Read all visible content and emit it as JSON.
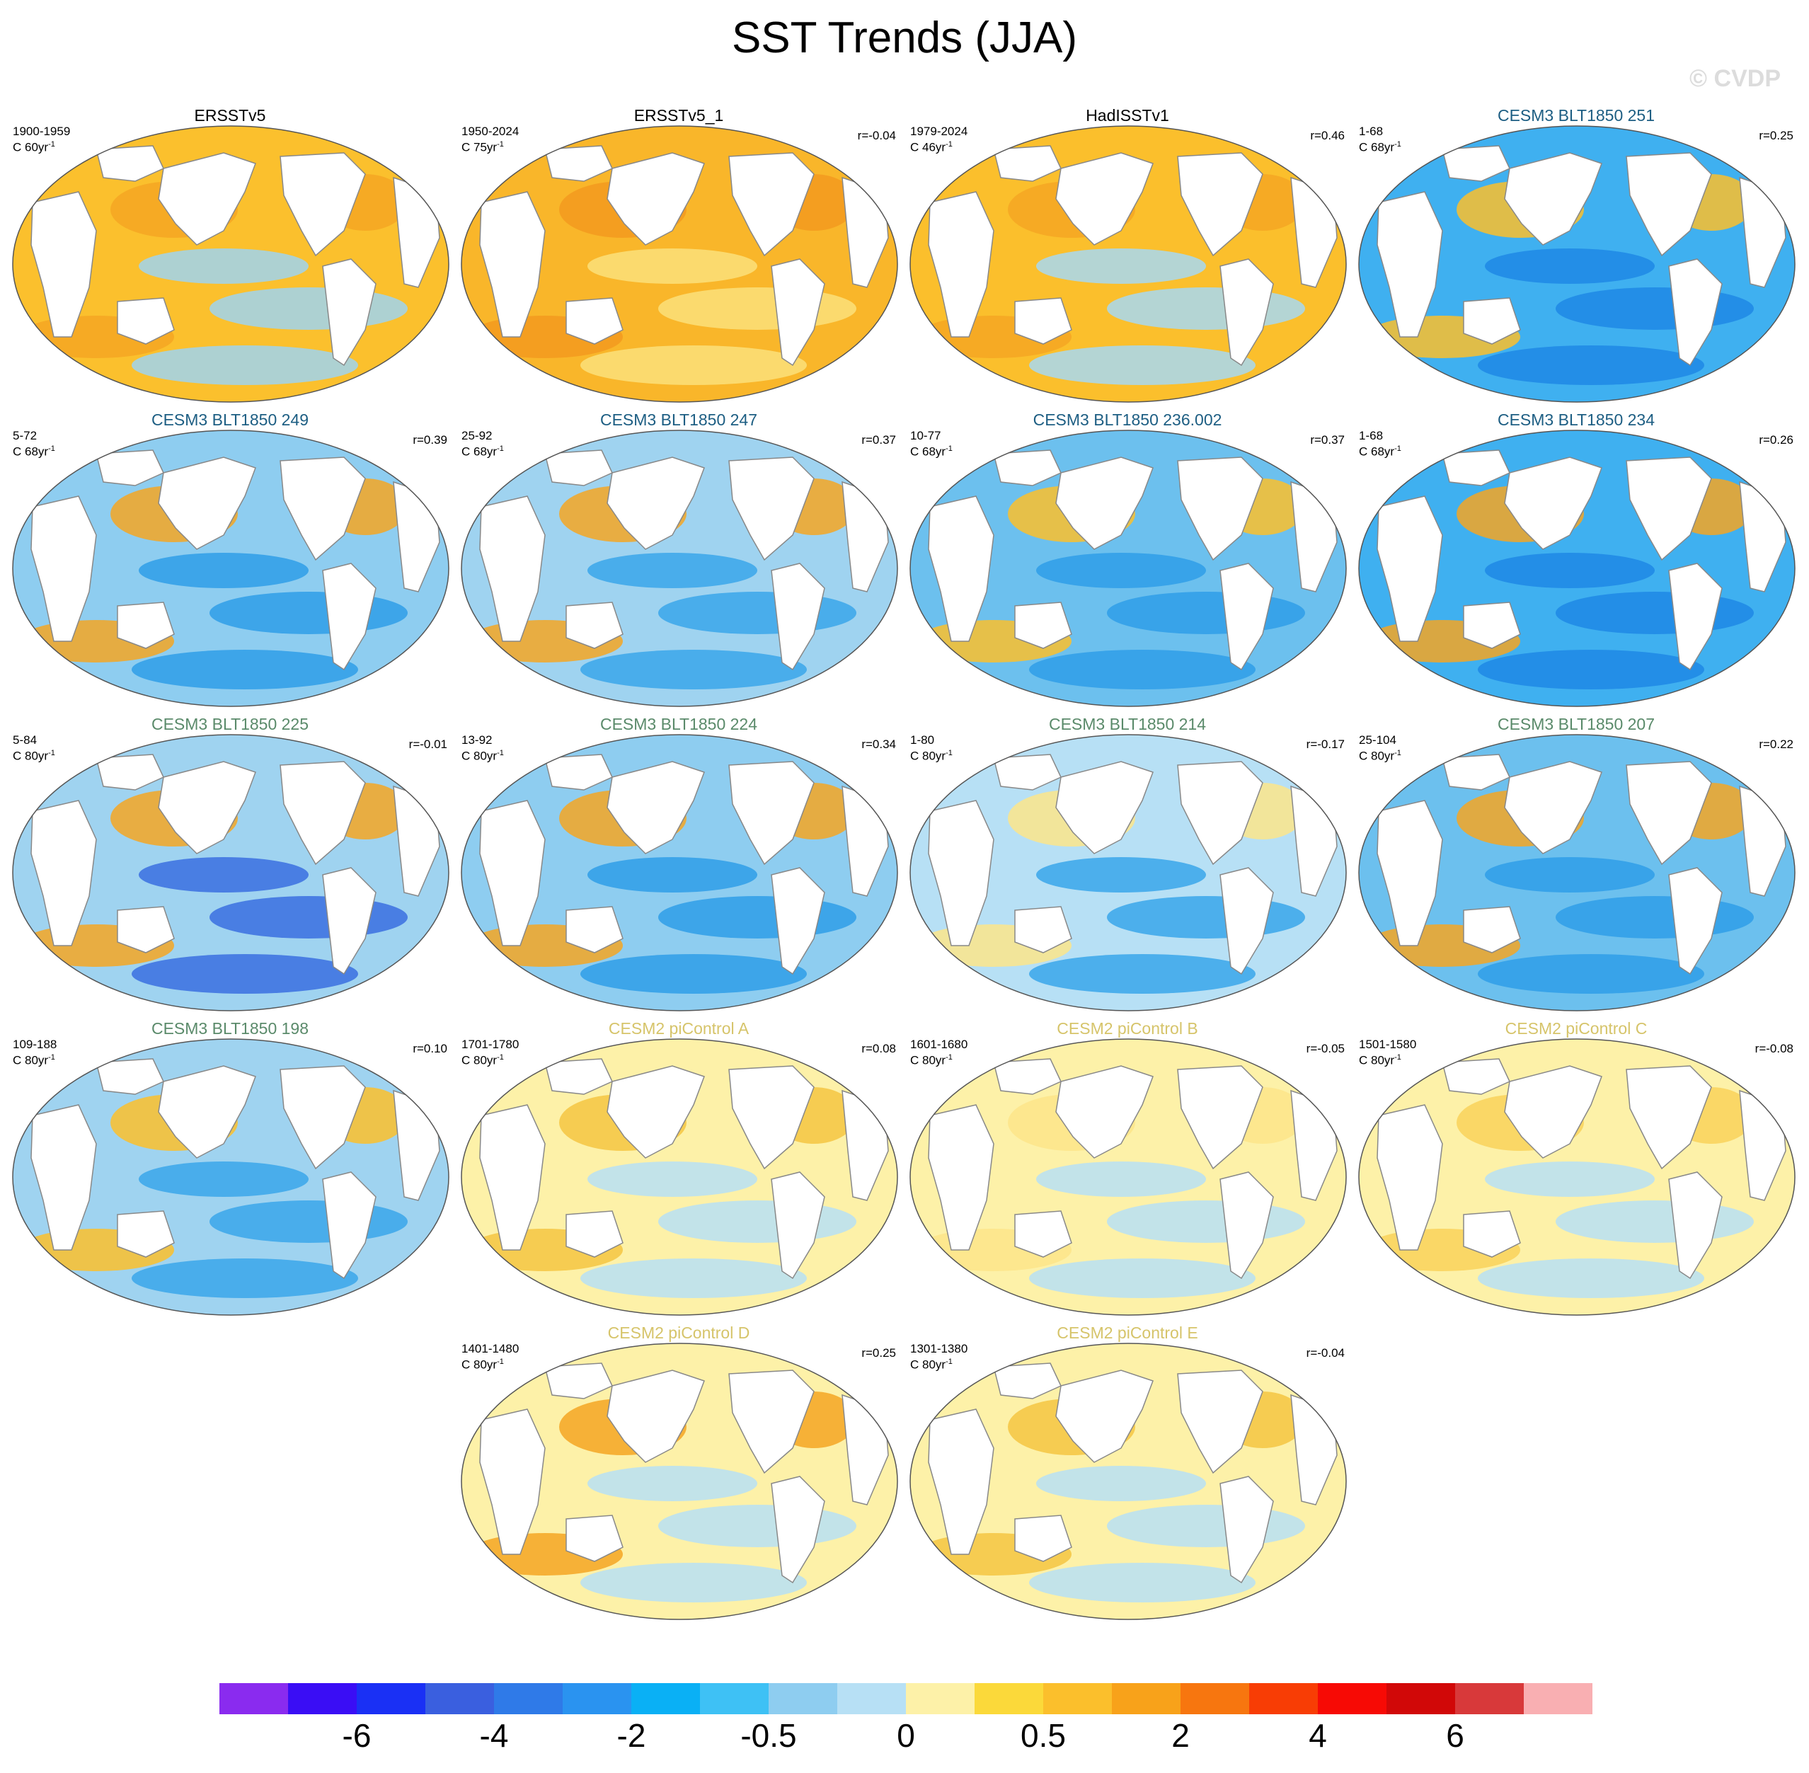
{
  "title": "SST Trends (JJA)",
  "watermark": "© CVDP",
  "colors": {
    "obs_title": "#000000",
    "cesm3_title_a": "#1d5e83",
    "cesm3_title_b": "#5a8a6a",
    "cesm2_title": "#d6c46a",
    "land": "#ffffff",
    "coast": "#888888"
  },
  "panels": [
    {
      "title": "ERSSTv5",
      "period": "1900-1959",
      "units": "C 60yr",
      "r": "",
      "group": "obs",
      "bg": "#fbc02d",
      "accent": "#f5a623",
      "cool": "#9fd3f0"
    },
    {
      "title": "ERSSTv5_1",
      "period": "1950-2024",
      "units": "C 75yr",
      "r": "r=-0.04",
      "group": "obs",
      "bg": "#f9b62a",
      "accent": "#f39a1e",
      "cool": "#fbe07a"
    },
    {
      "title": "HadISSTv1",
      "period": "1979-2024",
      "units": "C 46yr",
      "r": "r=0.46",
      "group": "obs",
      "bg": "#fbbf2c",
      "accent": "#f5a623",
      "cool": "#a7d8f2"
    },
    {
      "title": "CESM3 BLT1850 251",
      "period": "1-68",
      "units": "C 68yr",
      "r": "r=0.25",
      "group": "cesm3a",
      "bg": "#3fb0f0",
      "accent": "#fbbf2c",
      "cool": "#1e88e5"
    },
    {
      "title": "CESM3 BLT1850 249",
      "period": "5-72",
      "units": "C 68yr",
      "r": "r=0.39",
      "group": "cesm3a",
      "bg": "#8ecdf0",
      "accent": "#f5a623",
      "cool": "#2f9ee8"
    },
    {
      "title": "CESM3 BLT1850 247",
      "period": "25-92",
      "units": "C 68yr",
      "r": "r=0.37",
      "group": "cesm3a",
      "bg": "#9fd3f0",
      "accent": "#f5a623",
      "cool": "#3aa6ea"
    },
    {
      "title": "CESM3 BLT1850 236.002",
      "period": "10-77",
      "units": "C 68yr",
      "r": "r=0.37",
      "group": "cesm3a",
      "bg": "#6cc0ee",
      "accent": "#fbbf2c",
      "cool": "#2f9ee8"
    },
    {
      "title": "CESM3 BLT1850 234",
      "period": "1-68",
      "units": "C 68yr",
      "r": "r=0.26",
      "group": "cesm3a",
      "bg": "#3fb0f0",
      "accent": "#f5a623",
      "cool": "#1e88e5"
    },
    {
      "title": "CESM3 BLT1850 225",
      "period": "5-84",
      "units": "C 80yr",
      "r": "r=-0.01",
      "group": "cesm3b",
      "bg": "#9fd3f0",
      "accent": "#f5a623",
      "cool": "#3a6fe0"
    },
    {
      "title": "CESM3 BLT1850 224",
      "period": "13-92",
      "units": "C 80yr",
      "r": "r=0.34",
      "group": "cesm3b",
      "bg": "#8ecdf0",
      "accent": "#f5a623",
      "cool": "#2f9ee8"
    },
    {
      "title": "CESM3 BLT1850 214",
      "period": "1-80",
      "units": "C 80yr",
      "r": "r=-0.17",
      "group": "cesm3b",
      "bg": "#b7e0f5",
      "accent": "#fde58a",
      "cool": "#3aa6ea"
    },
    {
      "title": "CESM3 BLT1850 207",
      "period": "25-104",
      "units": "C 80yr",
      "r": "r=0.22",
      "group": "cesm3b",
      "bg": "#6cc0ee",
      "accent": "#f5a623",
      "cool": "#2f9ee8"
    },
    {
      "title": "CESM3 BLT1850 198",
      "period": "109-188",
      "units": "C 80yr",
      "r": "r=0.10",
      "group": "cesm3b",
      "bg": "#9fd3f0",
      "accent": "#fbbf2c",
      "cool": "#3aa6ea"
    },
    {
      "title": "CESM2 piControl A",
      "period": "1701-1780",
      "units": "C 80yr",
      "r": "r=0.08",
      "group": "cesm2",
      "bg": "#fdf1a8",
      "accent": "#f5c542",
      "cool": "#b7e0f5"
    },
    {
      "title": "CESM2 piControl B",
      "period": "1601-1680",
      "units": "C 80yr",
      "r": "r=-0.05",
      "group": "cesm2",
      "bg": "#fdf1a8",
      "accent": "#fde58a",
      "cool": "#b7e0f5"
    },
    {
      "title": "CESM2 piControl C",
      "period": "1501-1580",
      "units": "C 80yr",
      "r": "r=-0.08",
      "group": "cesm2",
      "bg": "#fdf1a8",
      "accent": "#f9d25a",
      "cool": "#b7e0f5"
    },
    {
      "title": "CESM2 piControl D",
      "period": "1401-1480",
      "units": "C 80yr",
      "r": "r=0.25",
      "group": "cesm2",
      "bg": "#fdf1a8",
      "accent": "#f5a623",
      "cool": "#b7e0f5"
    },
    {
      "title": "CESM2 piControl E",
      "period": "1301-1380",
      "units": "C 80yr",
      "r": "r=-0.04",
      "group": "cesm2",
      "bg": "#fdf1a8",
      "accent": "#f5c542",
      "cool": "#b7e0f5"
    }
  ],
  "colorbar": {
    "colors": [
      "#8a2bef",
      "#3a0df5",
      "#1a30f5",
      "#3a5fdf",
      "#2f7ae8",
      "#2a93f0",
      "#0ab0f5",
      "#3ec1f5",
      "#8ecdf0",
      "#b7e0f5",
      "#fdf1a8",
      "#fbd93a",
      "#fbbf2c",
      "#f8a21a",
      "#f7760f",
      "#f83d05",
      "#f70a05",
      "#d10808",
      "#d8393a",
      "#f9afb2"
    ],
    "labels": [
      "-6",
      "-4",
      "-2",
      "-0.5",
      "0",
      "0.5",
      "2",
      "4",
      "6"
    ],
    "label_boundaries": [
      2,
      4,
      6,
      8,
      10,
      12,
      14,
      16,
      18
    ]
  },
  "chart_data": {
    "type": "heatmap",
    "title": "SST Trends (JJA)",
    "colorbar_levels": [
      "-6",
      "-4",
      "-2",
      "-0.5",
      "0",
      "0.5",
      "2",
      "4",
      "6"
    ],
    "series": [
      {
        "name": "ERSSTv5",
        "period": "1900-1959",
        "r": null
      },
      {
        "name": "ERSSTv5_1",
        "period": "1950-2024",
        "r": -0.04
      },
      {
        "name": "HadISSTv1",
        "period": "1979-2024",
        "r": 0.46
      },
      {
        "name": "CESM3 BLT1850 251",
        "period": "1-68",
        "r": 0.25
      },
      {
        "name": "CESM3 BLT1850 249",
        "period": "5-72",
        "r": 0.39
      },
      {
        "name": "CESM3 BLT1850 247",
        "period": "25-92",
        "r": 0.37
      },
      {
        "name": "CESM3 BLT1850 236.002",
        "period": "10-77",
        "r": 0.37
      },
      {
        "name": "CESM3 BLT1850 234",
        "period": "1-68",
        "r": 0.26
      },
      {
        "name": "CESM3 BLT1850 225",
        "period": "5-84",
        "r": -0.01
      },
      {
        "name": "CESM3 BLT1850 224",
        "period": "13-92",
        "r": 0.34
      },
      {
        "name": "CESM3 BLT1850 214",
        "period": "1-80",
        "r": -0.17
      },
      {
        "name": "CESM3 BLT1850 207",
        "period": "25-104",
        "r": 0.22
      },
      {
        "name": "CESM3 BLT1850 198",
        "period": "109-188",
        "r": 0.1
      },
      {
        "name": "CESM2 piControl A",
        "period": "1701-1780",
        "r": 0.08
      },
      {
        "name": "CESM2 piControl B",
        "period": "1601-1680",
        "r": -0.05
      },
      {
        "name": "CESM2 piControl C",
        "period": "1501-1580",
        "r": -0.08
      },
      {
        "name": "CESM2 piControl D",
        "period": "1401-1480",
        "r": 0.25
      },
      {
        "name": "CESM2 piControl E",
        "period": "1301-1380",
        "r": -0.04
      }
    ]
  }
}
